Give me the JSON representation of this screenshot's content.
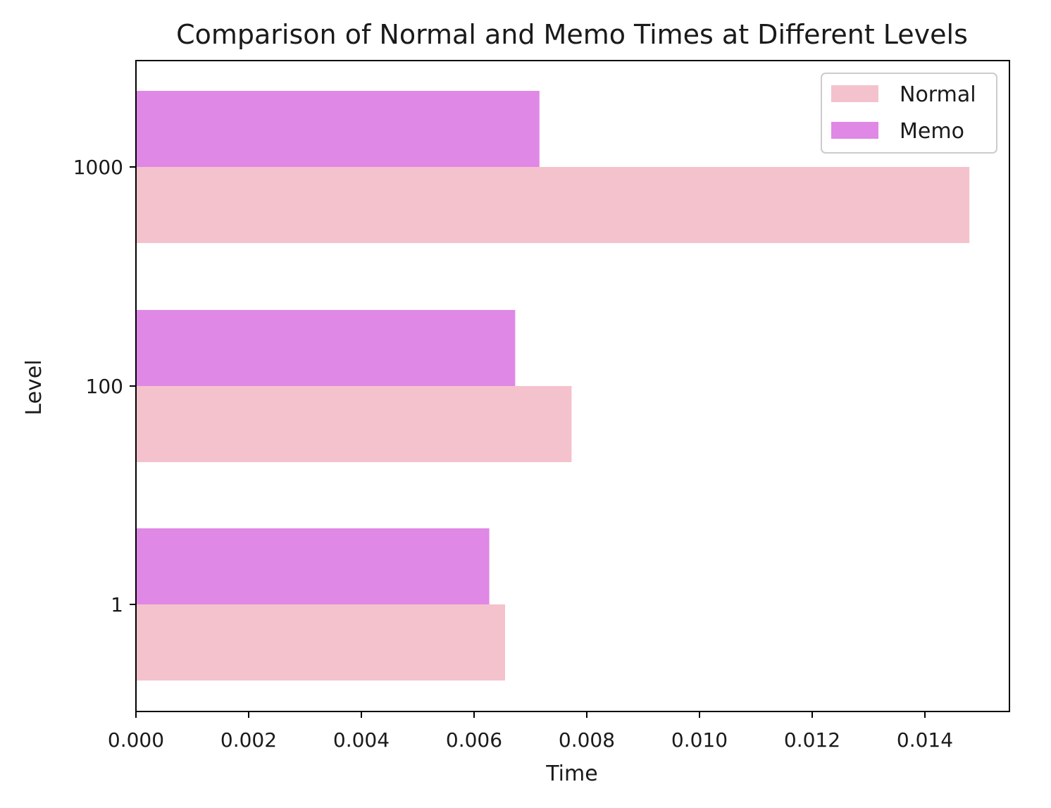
{
  "chart_data": {
    "type": "bar",
    "orientation": "horizontal",
    "title": "Comparison of Normal and Memo Times at Different Levels",
    "xlabel": "Time",
    "ylabel": "Level",
    "categories": [
      "1",
      "100",
      "1000"
    ],
    "series": [
      {
        "name": "Normal",
        "color": "#f4c2cc",
        "values": [
          0.00655,
          0.00773,
          0.01479
        ]
      },
      {
        "name": "Memo",
        "color": "#e088e6",
        "values": [
          0.00627,
          0.00673,
          0.00716
        ]
      }
    ],
    "xlim": [
      0,
      0.0155
    ],
    "xticks": [
      "0.000",
      "0.002",
      "0.004",
      "0.006",
      "0.008",
      "0.010",
      "0.012",
      "0.014"
    ],
    "legend_position": "top-right",
    "grid": false
  }
}
